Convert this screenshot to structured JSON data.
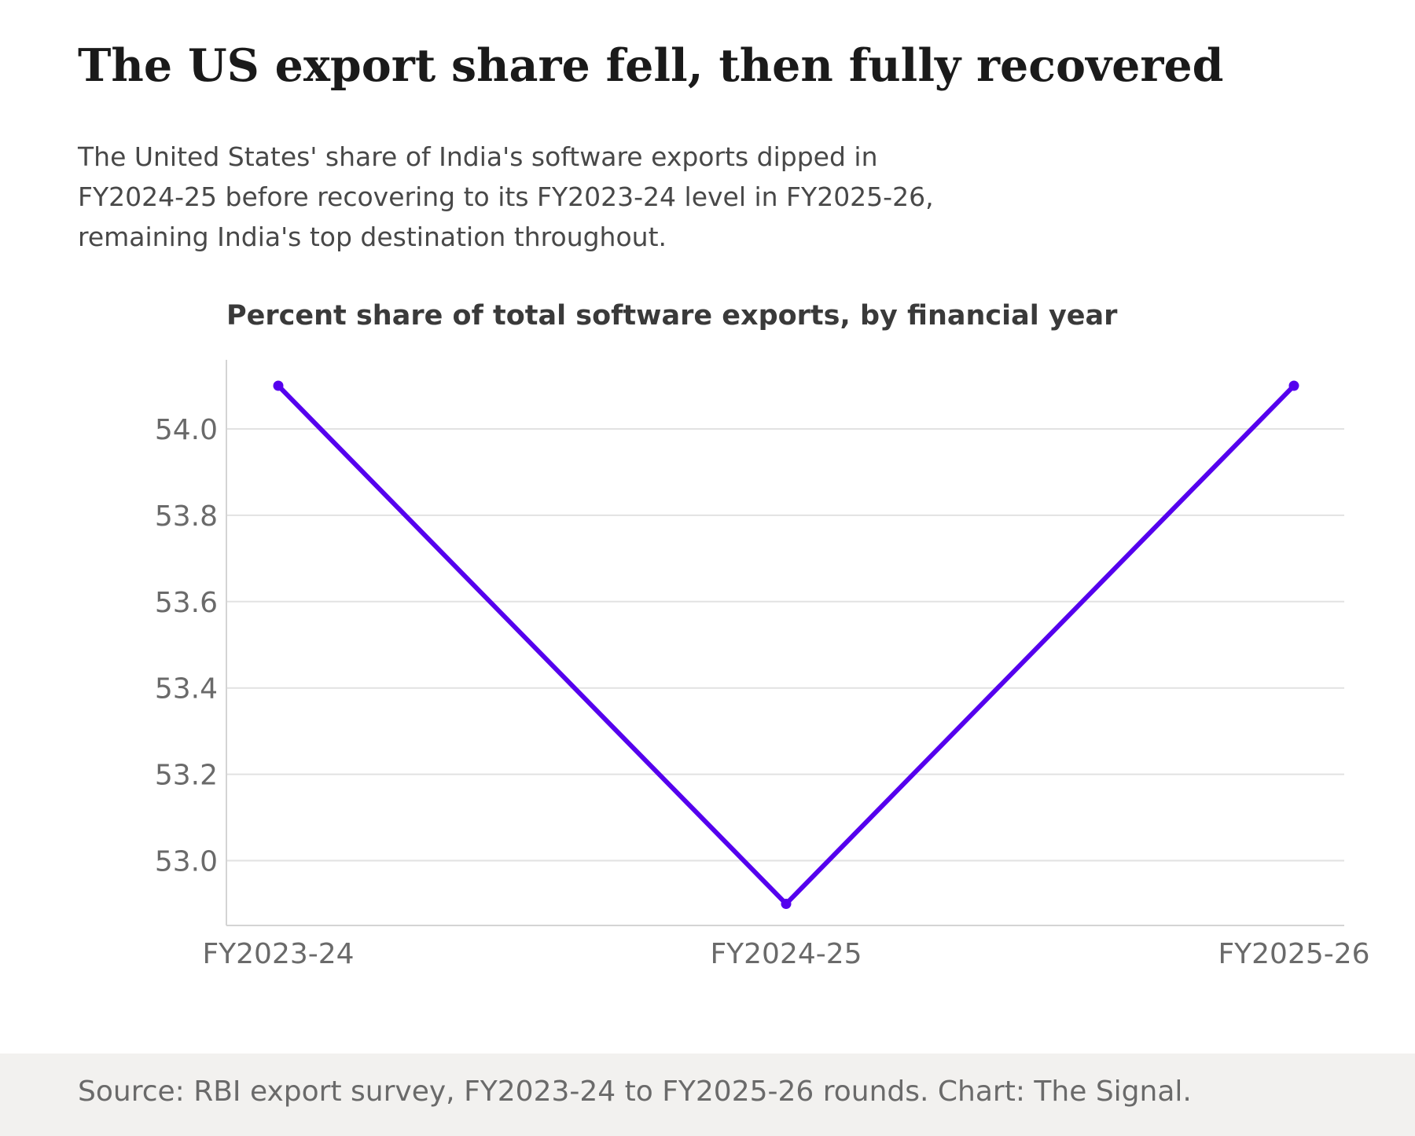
{
  "title": "The US export share fell, then fully recovered",
  "subtitle_lines": [
    "The United States' share of India's software exports dipped in",
    "FY2024-25 before recovering to its FY2023-24 level in FY2025-26,",
    "remaining India's top destination throughout."
  ],
  "source": "Source: RBI export survey, FY2023-24 to FY2025-26 rounds. Chart: The Signal.",
  "colors": {
    "line": "#5500ee",
    "grid": "#e2e2e2",
    "axis": "#d4d4d4",
    "tick_text": "#6a6a6a",
    "chart_title": "#3a3a3a"
  },
  "chart_data": {
    "type": "line",
    "title": "Percent share of total software exports, by financial year",
    "xlabel": "",
    "ylabel": "",
    "categories": [
      "FY2023-24",
      "FY2024-25",
      "FY2025-26"
    ],
    "series": [
      {
        "values": [
          54.1,
          52.9,
          54.1
        ]
      }
    ],
    "ylim": [
      52.85,
      54.16
    ],
    "yticks": [
      53.0,
      53.2,
      53.4,
      53.6,
      53.8,
      54.0
    ],
    "ytick_labels": [
      "53.0",
      "53.2",
      "53.4",
      "53.6",
      "53.8",
      "54.0"
    ],
    "grid": true,
    "legend": "none"
  }
}
